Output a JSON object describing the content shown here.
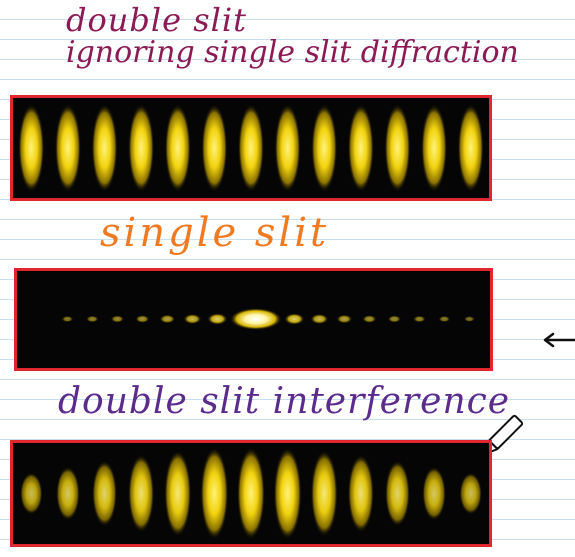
{
  "labels": {
    "double_slit": "double slit",
    "ignoring": "ignoring single slit diffraction",
    "single_slit": "single slit",
    "interference": "double slit interference"
  },
  "colors": {
    "burgundy_ink": "#8b1a55",
    "orange_ink": "#f07a22",
    "purple_ink": "#5b2c8c",
    "frame_red": "#e0262f",
    "fringe_yellow": "#f2d30f"
  },
  "patterns": {
    "double_slit_ideal": {
      "fringes": 13,
      "brightness": [
        1,
        1,
        1,
        1,
        1,
        1,
        1,
        1,
        1,
        1,
        1,
        1,
        1
      ]
    },
    "single_slit": {
      "brightness": [
        0.25,
        0.3,
        0.35,
        0.4,
        0.5,
        0.65,
        0.8,
        1,
        0.8,
        0.65,
        0.5,
        0.4,
        0.35,
        0.3,
        0.25,
        0.2
      ]
    },
    "double_slit_interference": {
      "brightness": [
        0.55,
        0.65,
        0.75,
        0.85,
        0.92,
        1,
        1,
        1,
        0.92,
        0.85,
        0.75,
        0.65,
        0.55
      ]
    }
  },
  "icons": {
    "arrow": "left-arrow-icon",
    "pen": "pen-cursor-icon"
  }
}
